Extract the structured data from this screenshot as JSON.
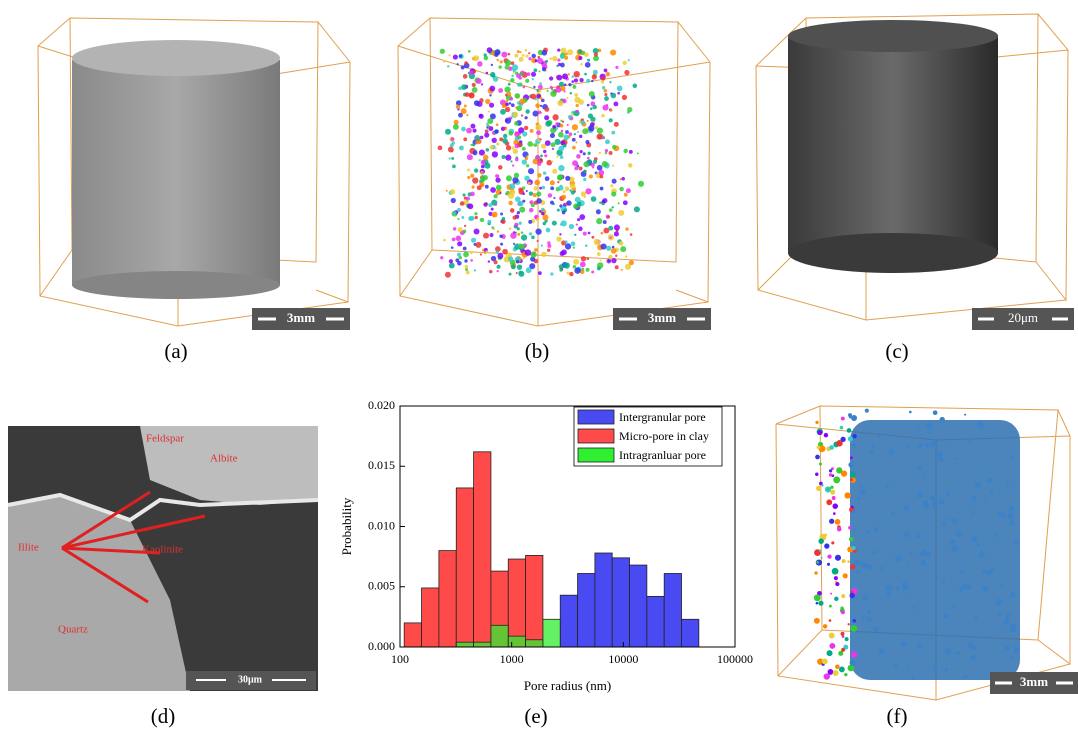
{
  "panels": [
    {
      "label": "(a)",
      "scale_bar": "3mm"
    },
    {
      "label": "(b)",
      "scale_bar": "3mm"
    },
    {
      "label": "(c)",
      "scale_bar": "20μm"
    },
    {
      "label": "(d)",
      "scale_bar": "30μm",
      "annotations": [
        "Feldspar",
        "Albite",
        "Illite",
        "Kaolinite",
        "Quartz"
      ]
    },
    {
      "label": "(e)"
    },
    {
      "label": "(f)",
      "scale_bar": "3mm"
    }
  ],
  "chart_data": {
    "type": "histogram",
    "xlabel": "Pore radius (nm)",
    "ylabel": "Probability",
    "log_x": true,
    "xlim": [
      100,
      100000
    ],
    "xticks": [
      100,
      1000,
      10000,
      100000
    ],
    "ylim": [
      0,
      0.02
    ],
    "yticks": [
      {
        "value": 0,
        "label": "0.000"
      },
      0.005,
      {
        "value": 0.01,
        "label": "0.010"
      },
      0.015,
      {
        "value": 0.02,
        "label": "0.020"
      }
    ],
    "legend": "upper right",
    "bins": [
      109,
      156,
      223,
      319,
      456,
      652,
      932,
      1332,
      1904,
      2722,
      3891,
      5562,
      7950,
      11364,
      16244,
      23220,
      33190,
      47440
    ],
    "series": [
      {
        "name": "Intergranular pore",
        "color": "#4a4af2",
        "values": [
          null,
          null,
          null,
          null,
          null,
          null,
          null,
          null,
          null,
          0.0043,
          0.0061,
          0.0078,
          0.0074,
          0.0068,
          0.0042,
          0.0061,
          0.0023
        ]
      },
      {
        "name": "Micro-pore in clay",
        "color": "#ff4a4a",
        "values": [
          0.002,
          0.0049,
          0.008,
          0.0132,
          0.0162,
          0.0063,
          0.0073,
          0.0076,
          null,
          null,
          null,
          null,
          null,
          null,
          null,
          null,
          null
        ]
      },
      {
        "name": "Intragranluar pore",
        "color": "#30ee30",
        "values": [
          null,
          null,
          null,
          0.0004,
          0.0004,
          0.0018,
          0.0009,
          0.0006,
          0.0023,
          null,
          null,
          null,
          null,
          null,
          null,
          null,
          null
        ]
      }
    ]
  }
}
